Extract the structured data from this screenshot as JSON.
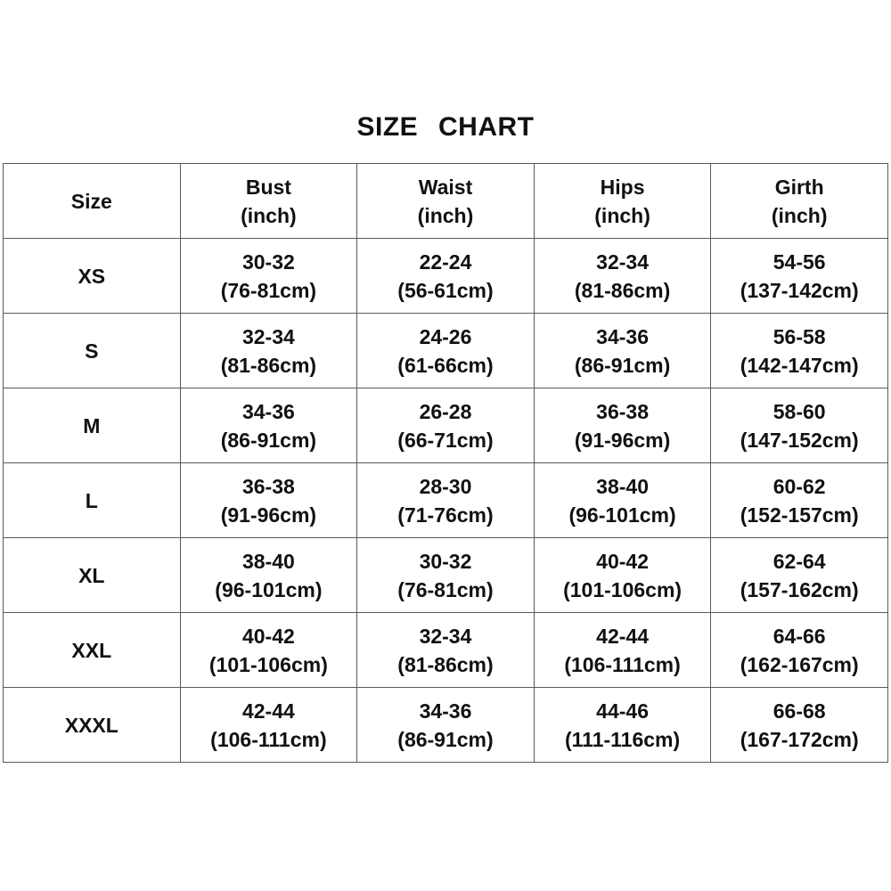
{
  "page": {
    "background_color": "#ffffff",
    "text_color": "#111111",
    "border_color": "#595959"
  },
  "title": "SIZE  CHART",
  "table": {
    "columns": [
      {
        "label": "Size",
        "unit": ""
      },
      {
        "label": "Bust",
        "unit": "(inch)"
      },
      {
        "label": "Waist",
        "unit": "(inch)"
      },
      {
        "label": "Hips",
        "unit": "(inch)"
      },
      {
        "label": "Girth",
        "unit": "(inch)"
      }
    ],
    "rows": [
      {
        "size": "XS",
        "measurements": [
          {
            "inch": "30-32",
            "cm": "(76-81cm)"
          },
          {
            "inch": "22-24",
            "cm": "(56-61cm)"
          },
          {
            "inch": "32-34",
            "cm": "(81-86cm)"
          },
          {
            "inch": "54-56",
            "cm": "(137-142cm)"
          }
        ]
      },
      {
        "size": "S",
        "measurements": [
          {
            "inch": "32-34",
            "cm": "(81-86cm)"
          },
          {
            "inch": "24-26",
            "cm": "(61-66cm)"
          },
          {
            "inch": "34-36",
            "cm": "(86-91cm)"
          },
          {
            "inch": "56-58",
            "cm": "(142-147cm)"
          }
        ]
      },
      {
        "size": "M",
        "measurements": [
          {
            "inch": "34-36",
            "cm": "(86-91cm)"
          },
          {
            "inch": "26-28",
            "cm": "(66-71cm)"
          },
          {
            "inch": "36-38",
            "cm": "(91-96cm)"
          },
          {
            "inch": "58-60",
            "cm": "(147-152cm)"
          }
        ]
      },
      {
        "size": "L",
        "measurements": [
          {
            "inch": "36-38",
            "cm": "(91-96cm)"
          },
          {
            "inch": "28-30",
            "cm": "(71-76cm)"
          },
          {
            "inch": "38-40",
            "cm": "(96-101cm)"
          },
          {
            "inch": "60-62",
            "cm": "(152-157cm)"
          }
        ]
      },
      {
        "size": "XL",
        "measurements": [
          {
            "inch": "38-40",
            "cm": "(96-101cm)"
          },
          {
            "inch": "30-32",
            "cm": "(76-81cm)"
          },
          {
            "inch": "40-42",
            "cm": "(101-106cm)"
          },
          {
            "inch": "62-64",
            "cm": "(157-162cm)"
          }
        ]
      },
      {
        "size": "XXL",
        "measurements": [
          {
            "inch": "40-42",
            "cm": "(101-106cm)"
          },
          {
            "inch": "32-34",
            "cm": "(81-86cm)"
          },
          {
            "inch": "42-44",
            "cm": "(106-111cm)"
          },
          {
            "inch": "64-66",
            "cm": "(162-167cm)"
          }
        ]
      },
      {
        "size": "XXXL",
        "measurements": [
          {
            "inch": "42-44",
            "cm": "(106-111cm)"
          },
          {
            "inch": "34-36",
            "cm": "(86-91cm)"
          },
          {
            "inch": "44-46",
            "cm": "(111-116cm)"
          },
          {
            "inch": "66-68",
            "cm": "(167-172cm)"
          }
        ]
      }
    ]
  }
}
